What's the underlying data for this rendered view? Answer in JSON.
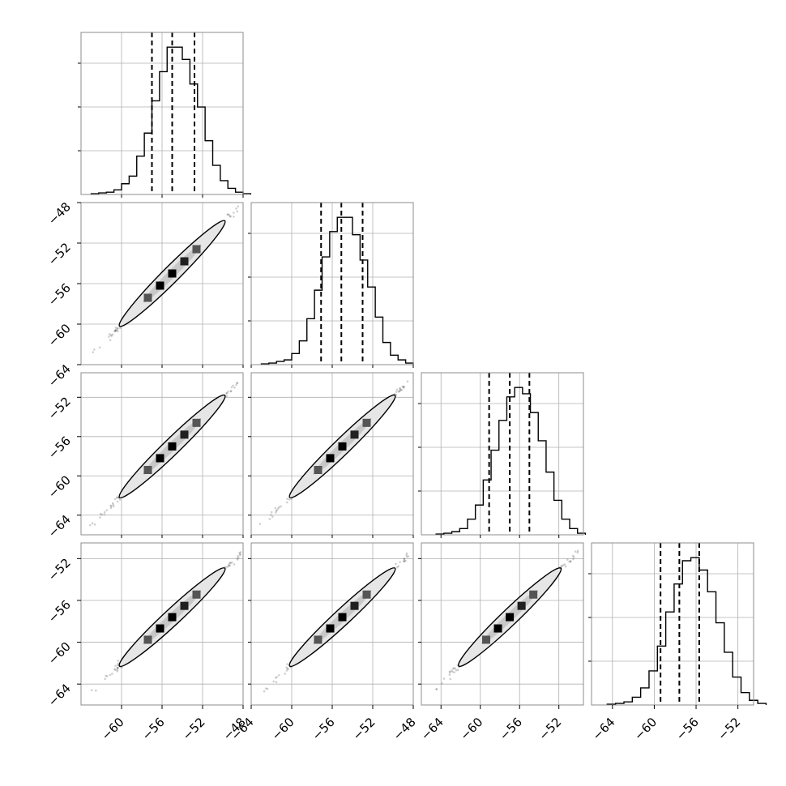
{
  "chart_data": {
    "type": "corner",
    "params": 4,
    "grid": true,
    "colors": {
      "hist": "#000000",
      "contour": "#000000",
      "frame": "#8c8c8c",
      "grid": "#b0b0b0",
      "points": "#555555"
    },
    "diag_ranges": [
      [
        -64.0,
        -48.0
      ],
      [
        -64.0,
        -48.0
      ],
      [
        -66.0,
        -49.5
      ],
      [
        -66.0,
        -50.5
      ]
    ],
    "y_ticks": {
      "1": [
        -48,
        -52,
        -56,
        -60,
        -64
      ],
      "2": [
        -52,
        -56,
        -60,
        -64
      ],
      "3": [
        -52,
        -56,
        -60,
        -64
      ]
    },
    "x_ticks": {
      "0": [
        -60,
        -56,
        -52,
        -48
      ],
      "1": [
        -64,
        -60,
        -56,
        -52,
        -48
      ],
      "2": [
        -64,
        -60,
        -56,
        -52
      ],
      "3": [
        -64,
        -60,
        -56,
        -52
      ]
    },
    "x_tick_labels": {
      "0": [
        "−60",
        "−56",
        "−52",
        "−48"
      ],
      "1": [
        "−64",
        "−60",
        "−56",
        "−52",
        "−48"
      ],
      "2": [
        "−64",
        "−60",
        "−56",
        "−52"
      ],
      "3": [
        "−64",
        "−60",
        "−56",
        "−52"
      ]
    },
    "y_tick_labels": {
      "1": [
        "−48",
        "−52",
        "−56",
        "−60",
        "−64"
      ],
      "2": [
        "−52",
        "−56",
        "−60",
        "−64"
      ],
      "3": [
        "−52",
        "−56",
        "−60",
        "−64"
      ]
    },
    "histograms": [
      {
        "param": 0,
        "edges_start": -63.0,
        "bin_width": 0.75,
        "counts": [
          0.5,
          1,
          1.5,
          3,
          7,
          12,
          25,
          40,
          61,
          80,
          96,
          96,
          88,
          72,
          57,
          35,
          19,
          9,
          4,
          1.5,
          0.5
        ],
        "quantiles": [
          -57.0,
          -55.0,
          -52.8
        ]
      },
      {
        "param": 1,
        "edges_start": -63.0,
        "bin_width": 0.75,
        "counts": [
          0.5,
          1,
          2,
          3,
          7,
          15,
          29,
          47,
          68,
          84,
          93,
          93,
          82,
          66,
          49,
          30,
          14,
          6,
          3,
          1
        ],
        "quantiles": [
          -57.1,
          -55.1,
          -53.0
        ]
      },
      {
        "param": 2,
        "edges_start": -64.5,
        "bin_width": 0.8,
        "counts": [
          0.5,
          1,
          2,
          4,
          10,
          19,
          35,
          54,
          73,
          88,
          94,
          90,
          78,
          60,
          40,
          22,
          10,
          4,
          1
        ],
        "quantiles": [
          -59.1,
          -57.0,
          -55.0
        ]
      },
      {
        "param": 3,
        "edges_start": -64.5,
        "bin_width": 0.8,
        "counts": [
          0.5,
          1,
          2,
          5,
          11,
          22,
          38,
          60,
          78,
          93,
          95,
          87,
          73,
          53,
          34,
          18,
          8,
          3,
          1
        ],
        "quantiles": [
          -59.4,
          -57.6,
          -55.7
        ]
      }
    ],
    "density_center": [
      -55.0,
      -55.0,
      -57.0,
      -57.6
    ],
    "density_sigma": [
      2.0,
      2.0,
      2.0,
      1.8
    ]
  }
}
